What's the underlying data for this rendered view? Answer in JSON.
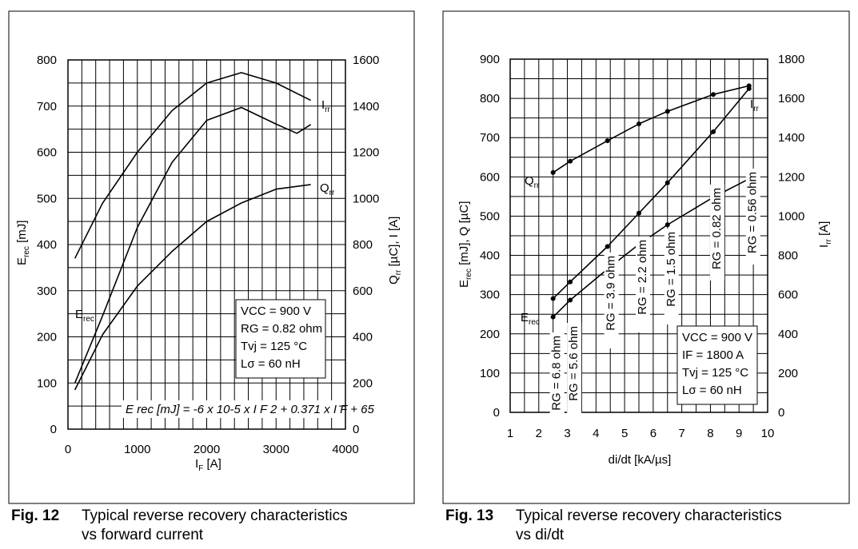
{
  "figures": [
    {
      "fig_label": "Fig. 12",
      "caption_line1": "Typical reverse recovery characteristics",
      "caption_line2": "vs forward current"
    },
    {
      "fig_label": "Fig. 13",
      "caption_line1": "Typical reverse recovery characteristics",
      "caption_line2": "vs di/dt"
    }
  ],
  "chart_data": [
    {
      "type": "line",
      "xlabel": "I_F [A]",
      "ylabel_left": "E_rec [mJ]",
      "ylabel_right": "Q_rr [µC], I_rr [A]",
      "xlim": [
        0,
        4000
      ],
      "ylim_left": [
        0,
        800
      ],
      "ylim_right": [
        0,
        1600
      ],
      "x_ticks": [
        "0",
        "1000",
        "2000",
        "3000",
        "4000"
      ],
      "y_left_ticks": [
        "0",
        "100",
        "200",
        "300",
        "400",
        "500",
        "600",
        "700",
        "800"
      ],
      "y_right_ticks": [
        "0",
        "200",
        "400",
        "600",
        "800",
        "1000",
        "1200",
        "1400",
        "1600"
      ],
      "grid": true,
      "series": [
        {
          "name": "I_rr",
          "axis": "right",
          "x": [
            100,
            500,
            1000,
            1500,
            2000,
            2500,
            3000,
            3500
          ],
          "y": [
            740,
            980,
            1200,
            1380,
            1500,
            1545,
            1500,
            1425
          ]
        },
        {
          "name": "E_rec",
          "axis": "left",
          "x": [
            100,
            500,
            1000,
            1500,
            2000,
            2500,
            3000,
            3300,
            3500
          ],
          "y": [
            100,
            246,
            437,
            578,
            669,
            697,
            661,
            641,
            660
          ]
        },
        {
          "name": "Q_rr",
          "axis": "right",
          "x": [
            100,
            500,
            1000,
            1500,
            2000,
            2500,
            3000,
            3500
          ],
          "y": [
            170,
            410,
            620,
            770,
            900,
            980,
            1040,
            1060
          ]
        }
      ],
      "parameters": [
        "VCC = 900 V",
        "RG = 0.82 ohm",
        "Tvj = 125 °C",
        "Lσ = 60 nH"
      ],
      "formula": "E rec [mJ] = -6 x 10-5 x I F 2 + 0.371 x I F + 65"
    },
    {
      "type": "line",
      "xlabel": "di/dt [kA/µs]",
      "ylabel_left": "E_rec [mJ], Q_rr [µC]",
      "ylabel_right": "I_rr [A]",
      "xlim": [
        1,
        10
      ],
      "ylim_left": [
        0,
        900
      ],
      "ylim_right": [
        0,
        1800
      ],
      "x_ticks": [
        "1",
        "2",
        "3",
        "4",
        "5",
        "6",
        "7",
        "8",
        "9",
        "10"
      ],
      "y_left_ticks": [
        "0",
        "100",
        "200",
        "300",
        "400",
        "500",
        "600",
        "700",
        "800",
        "900"
      ],
      "y_right_ticks": [
        "0",
        "200",
        "400",
        "600",
        "800",
        "1000",
        "1200",
        "1400",
        "1600",
        "1800"
      ],
      "grid": true,
      "series": [
        {
          "name": "Q_rr",
          "axis": "left",
          "x": [
            2.5,
            3.1,
            4.4,
            5.5,
            6.5,
            8.1,
            9.35
          ],
          "y": [
            611,
            640,
            692,
            735,
            767,
            810,
            832
          ]
        },
        {
          "name": "I_rr",
          "axis": "right",
          "x": [
            2.5,
            3.1,
            4.4,
            5.5,
            6.5,
            8.1,
            9.35
          ],
          "y": [
            580,
            665,
            845,
            1015,
            1170,
            1430,
            1650
          ]
        },
        {
          "name": "E_rec",
          "axis": "left",
          "x": [
            2.5,
            3.1,
            4.4,
            5.5,
            6.5,
            8.1,
            9.35
          ],
          "y": [
            243,
            286,
            365,
            428,
            478,
            548,
            595
          ]
        }
      ],
      "rg_labels": [
        "RG = 6.8 ohm",
        "RG = 5.6 ohm",
        "RG = 3.9 ohm",
        "RG = 2.2 ohm",
        "RG = 1.5 ohm",
        "RG = 0.82 ohm",
        "RG = 0.56 ohm"
      ],
      "parameters": [
        "VCC = 900 V",
        "IF = 1800 A",
        "Tvj = 125 °C",
        "Lσ = 60 nH"
      ]
    }
  ],
  "labels": {
    "fig12": {
      "irr": "I",
      "irr_sub": "rr",
      "qrr": "Q",
      "qrr_sub": "rr",
      "erec": "E",
      "erec_sub": "rec"
    },
    "fig13": {
      "irr": "I",
      "irr_sub": "rr",
      "qrr": "Q",
      "qrr_sub": "rr",
      "erec": "E",
      "erec_sub": "rec"
    }
  }
}
